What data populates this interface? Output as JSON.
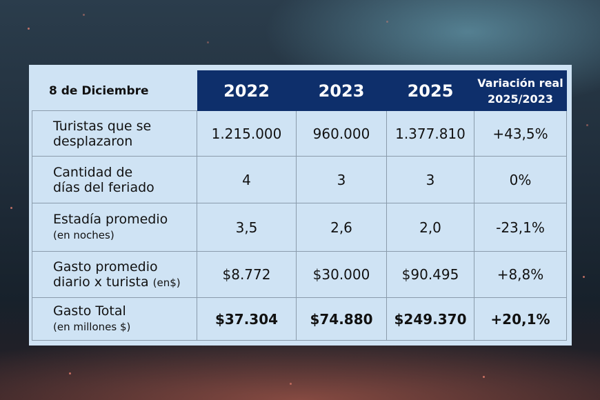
{
  "table": {
    "corner": "8 de Diciembre",
    "headers": [
      "2022",
      "2023",
      "2025"
    ],
    "variation_header": [
      "Variación real",
      "2025/2023"
    ],
    "rows": [
      {
        "label": [
          "Turistas que se",
          "desplazaron"
        ],
        "note": "",
        "values": [
          "1.215.000",
          "960.000",
          "1.377.810",
          "+43,5%"
        ]
      },
      {
        "label": [
          "Cantidad de",
          "días del feriado"
        ],
        "note": "",
        "values": [
          "4",
          "3",
          "3",
          "0%"
        ]
      },
      {
        "label": [
          "Estadía promedio"
        ],
        "note": "(en noches)",
        "values": [
          "3,5",
          "2,6",
          "2,0",
          "-23,1%"
        ]
      },
      {
        "label": [
          "Gasto promedio",
          "diario x turista"
        ],
        "note": "(en$)",
        "values": [
          "$8.772",
          "$30.000",
          "$90.495",
          "+8,8%"
        ]
      },
      {
        "label": [
          "Gasto Total"
        ],
        "note": "(en millones $)",
        "values": [
          "$37.304",
          "$74.880",
          "$249.370",
          "+20,1%"
        ]
      }
    ]
  }
}
